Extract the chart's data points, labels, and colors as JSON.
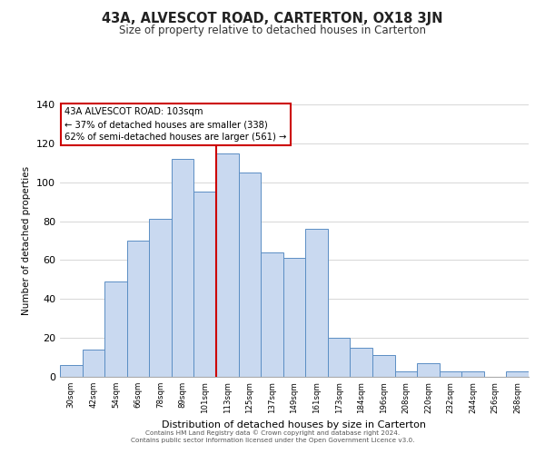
{
  "title": "43A, ALVESCOT ROAD, CARTERTON, OX18 3JN",
  "subtitle": "Size of property relative to detached houses in Carterton",
  "xlabel": "Distribution of detached houses by size in Carterton",
  "ylabel": "Number of detached properties",
  "footer_line1": "Contains HM Land Registry data © Crown copyright and database right 2024.",
  "footer_line2": "Contains public sector information licensed under the Open Government Licence v3.0.",
  "bin_labels": [
    "30sqm",
    "42sqm",
    "54sqm",
    "66sqm",
    "78sqm",
    "89sqm",
    "101sqm",
    "113sqm",
    "125sqm",
    "137sqm",
    "149sqm",
    "161sqm",
    "173sqm",
    "184sqm",
    "196sqm",
    "208sqm",
    "220sqm",
    "232sqm",
    "244sqm",
    "256sqm",
    "268sqm"
  ],
  "bar_heights": [
    6,
    14,
    49,
    70,
    81,
    112,
    95,
    115,
    105,
    64,
    61,
    76,
    20,
    15,
    11,
    3,
    7,
    3,
    3,
    0,
    3
  ],
  "bar_color": "#c9d9f0",
  "bar_edge_color": "#5b8ec4",
  "vline_x_idx": 6,
  "vline_color": "#cc0000",
  "annotation_text": "43A ALVESCOT ROAD: 103sqm\n← 37% of detached houses are smaller (338)\n62% of semi-detached houses are larger (561) →",
  "annotation_box_color": "#ffffff",
  "annotation_box_edge_color": "#cc0000",
  "ylim": [
    0,
    140
  ],
  "yticks": [
    0,
    20,
    40,
    60,
    80,
    100,
    120,
    140
  ],
  "background_color": "#ffffff",
  "grid_color": "#d0d0d0"
}
